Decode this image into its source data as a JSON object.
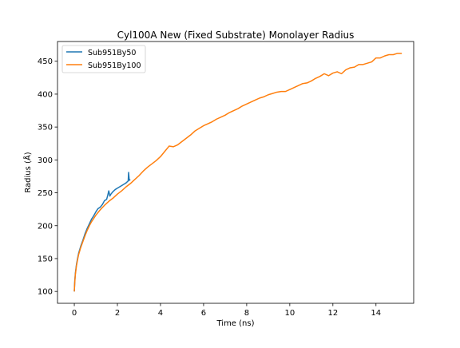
{
  "chart_data": {
    "type": "line",
    "title": "Cyl100A New (Fixed Substrate) Monolayer Radius",
    "xlabel": "Time (ns)",
    "ylabel": "Radius (Å)",
    "xlim": [
      -0.78,
      15.75
    ],
    "ylim": [
      82,
      480
    ],
    "xticks": [
      0,
      2,
      4,
      6,
      8,
      10,
      12,
      14
    ],
    "yticks": [
      100,
      150,
      200,
      250,
      300,
      350,
      400,
      450
    ],
    "grid": false,
    "legend_position": "top-left",
    "series": [
      {
        "name": "Sub951By50",
        "color": "#1f77b4",
        "x": [
          0.0,
          0.02,
          0.05,
          0.1,
          0.15,
          0.2,
          0.3,
          0.4,
          0.5,
          0.6,
          0.7,
          0.8,
          0.9,
          1.0,
          1.1,
          1.2,
          1.3,
          1.4,
          1.5,
          1.55,
          1.6,
          1.65,
          1.7,
          1.8,
          1.9,
          2.0,
          2.1,
          2.2,
          2.3,
          2.4,
          2.5,
          2.52,
          2.55,
          2.6
        ],
        "y": [
          100,
          115,
          128,
          141,
          150,
          158,
          169,
          178,
          188,
          196,
          203,
          210,
          215,
          221,
          226,
          228,
          232,
          238,
          240,
          246,
          253,
          245,
          248,
          252,
          255,
          257,
          259,
          261,
          263,
          265,
          268,
          281,
          269,
          270
        ]
      },
      {
        "name": "Sub951By100",
        "color": "#ff7f0e",
        "x": [
          0.0,
          0.02,
          0.05,
          0.1,
          0.15,
          0.2,
          0.3,
          0.4,
          0.5,
          0.6,
          0.7,
          0.8,
          1.0,
          1.2,
          1.4,
          1.6,
          1.8,
          2.0,
          2.2,
          2.4,
          2.6,
          2.8,
          3.0,
          3.2,
          3.4,
          3.6,
          3.8,
          4.0,
          4.2,
          4.4,
          4.6,
          4.8,
          5.0,
          5.2,
          5.4,
          5.6,
          5.8,
          6.0,
          6.2,
          6.4,
          6.6,
          6.8,
          7.0,
          7.2,
          7.4,
          7.6,
          7.8,
          8.0,
          8.2,
          8.4,
          8.6,
          8.8,
          9.0,
          9.2,
          9.4,
          9.6,
          9.8,
          10.0,
          10.2,
          10.4,
          10.6,
          10.8,
          11.0,
          11.2,
          11.4,
          11.6,
          11.8,
          12.0,
          12.2,
          12.4,
          12.6,
          12.8,
          13.0,
          13.2,
          13.4,
          13.6,
          13.8,
          14.0,
          14.2,
          14.4,
          14.6,
          14.8,
          15.0,
          15.2
        ],
        "y": [
          100,
          113,
          126,
          139,
          148,
          156,
          167,
          176,
          185,
          193,
          200,
          206,
          216,
          224,
          231,
          237,
          242,
          248,
          253,
          259,
          264,
          270,
          276,
          283,
          289,
          294,
          299,
          305,
          313,
          321,
          320,
          323,
          328,
          333,
          338,
          344,
          348,
          352,
          355,
          358,
          362,
          365,
          368,
          372,
          375,
          378,
          382,
          385,
          388,
          391,
          394,
          396,
          399,
          401,
          403,
          404,
          404,
          407,
          410,
          413,
          416,
          417,
          420,
          424,
          427,
          431,
          428,
          432,
          434,
          431,
          437,
          440,
          441,
          445,
          445,
          447,
          449,
          455,
          455,
          458,
          460,
          460,
          462,
          462
        ]
      }
    ]
  }
}
